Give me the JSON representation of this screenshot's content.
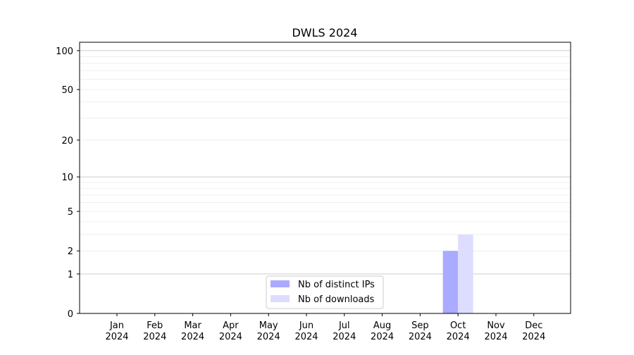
{
  "chart_data": {
    "type": "bar",
    "title": "DWLS 2024",
    "xlabel": "",
    "ylabel": "",
    "yscale": "log(1+y)",
    "ylim": [
      0,
      116
    ],
    "yticks": [
      0,
      1,
      2,
      5,
      10,
      20,
      50,
      100
    ],
    "grid": true,
    "legend_position": "bottom-center",
    "categories": [
      "Jan\n2024",
      "Feb\n2024",
      "Mar\n2024",
      "Apr\n2024",
      "May\n2024",
      "Jun\n2024",
      "Jul\n2024",
      "Aug\n2024",
      "Sep\n2024",
      "Oct\n2024",
      "Nov\n2024",
      "Dec\n2024"
    ],
    "series": [
      {
        "name": "Nb of distinct IPs",
        "color": "#aaaaff",
        "values": [
          0,
          0,
          0,
          0,
          0,
          0,
          0,
          0,
          0,
          2,
          0,
          0
        ]
      },
      {
        "name": "Nb of downloads",
        "color": "#ddddff",
        "values": [
          0,
          0,
          0,
          0,
          0,
          0,
          0,
          0,
          0,
          3,
          0,
          0
        ]
      }
    ]
  }
}
